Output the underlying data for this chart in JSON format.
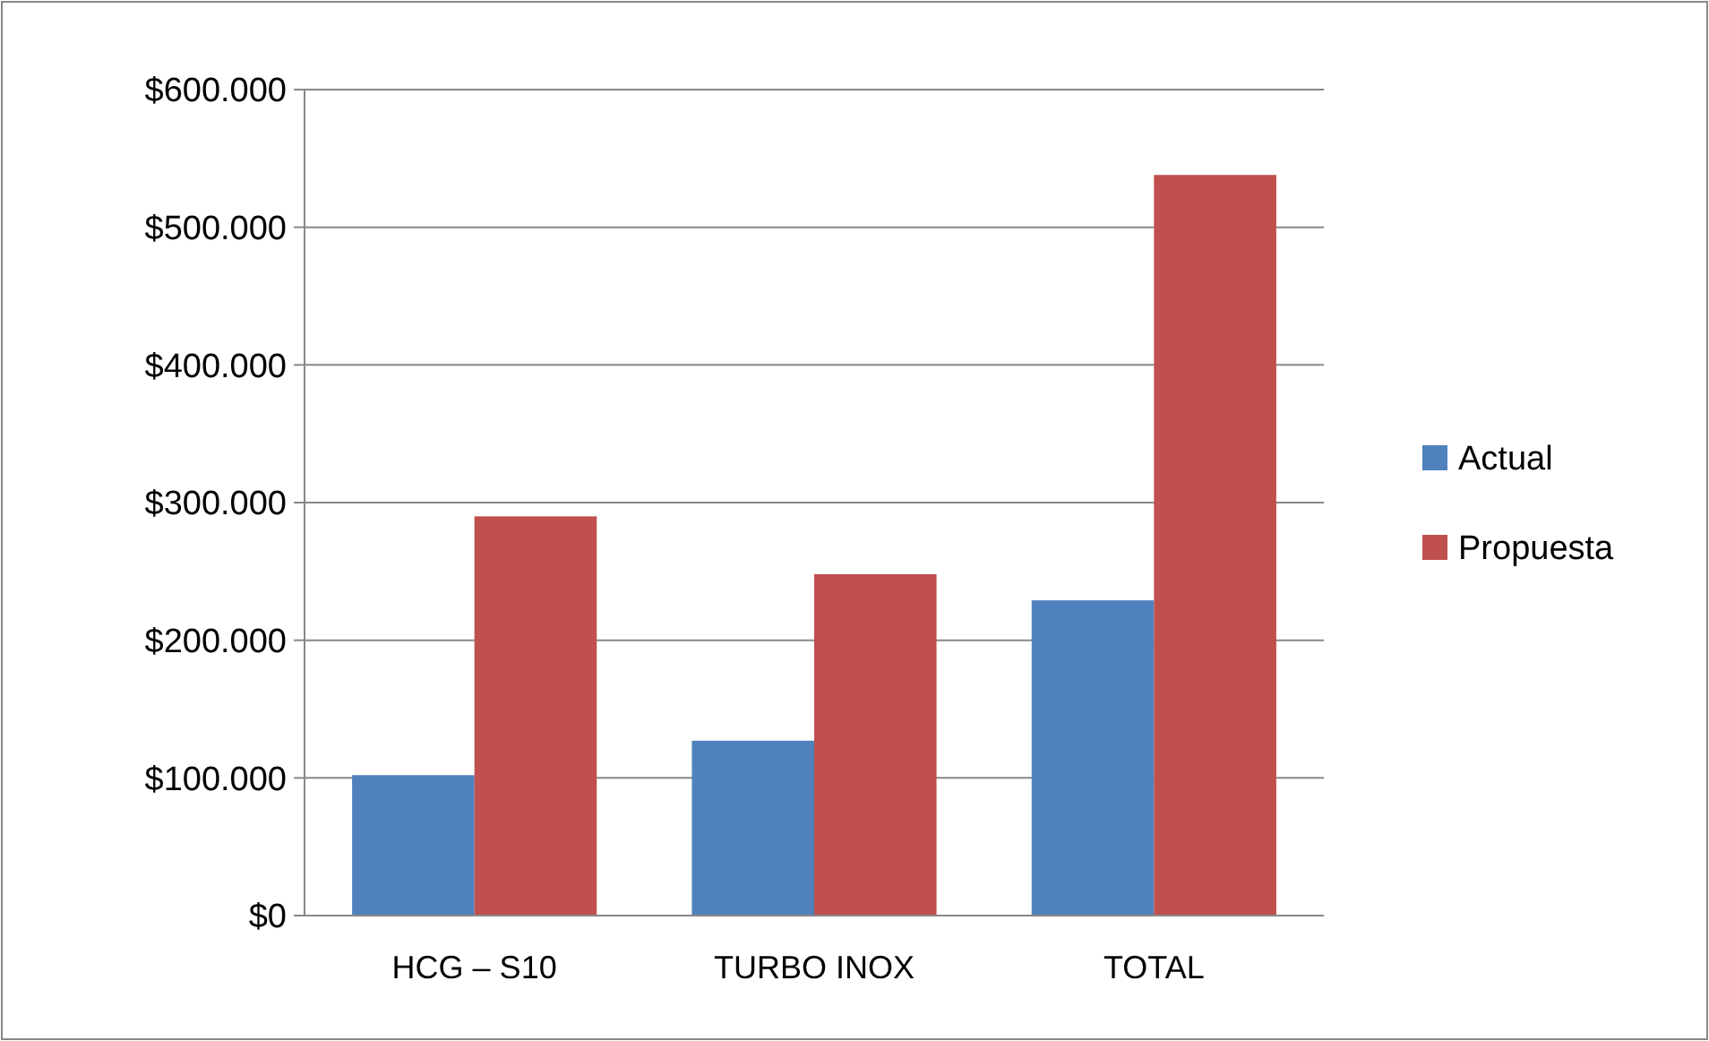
{
  "chart_data": {
    "type": "bar",
    "categories": [
      "HCG – S10",
      "TURBO INOX",
      "TOTAL"
    ],
    "series": [
      {
        "name": "Actual",
        "color": "#4f81bd",
        "values": [
          102000,
          127000,
          229000
        ]
      },
      {
        "name": "Propuesta",
        "color": "#c0504d",
        "values": [
          290000,
          248000,
          538000
        ]
      }
    ],
    "ylim": [
      0,
      600000
    ],
    "yticks": [
      {
        "value": 0,
        "label": "$0"
      },
      {
        "value": 100000,
        "label": "$100.000"
      },
      {
        "value": 200000,
        "label": "$200.000"
      },
      {
        "value": 300000,
        "label": "$300.000"
      },
      {
        "value": 400000,
        "label": "$400.000"
      },
      {
        "value": 500000,
        "label": "$500.000"
      },
      {
        "value": 600000,
        "label": "$600.000"
      }
    ],
    "grid": "y",
    "legend": "right"
  }
}
